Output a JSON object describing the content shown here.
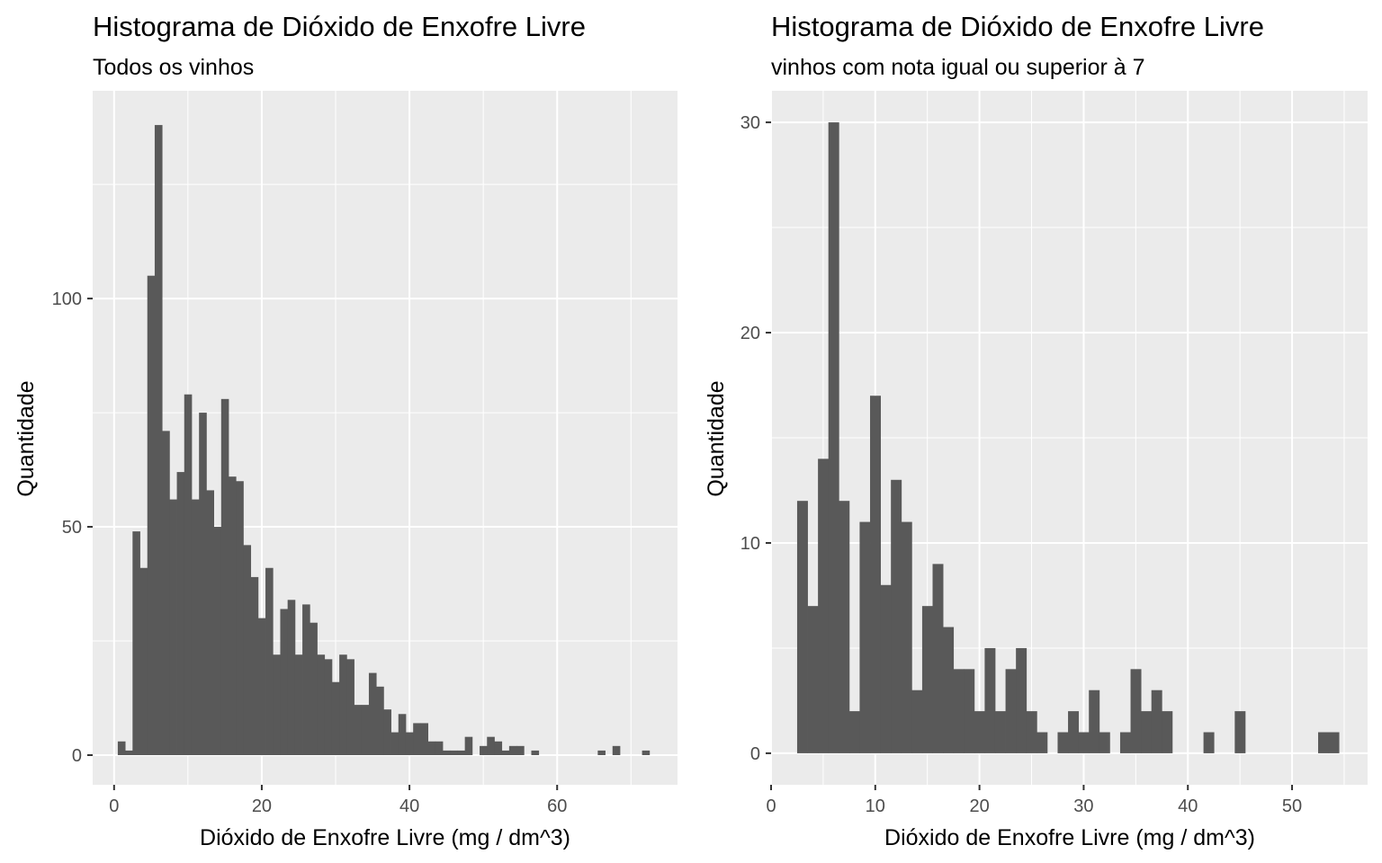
{
  "chart_data": [
    {
      "type": "histogram",
      "title": "Histograma de Dióxido de Enxofre Livre",
      "subtitle": "Todos os vinhos",
      "xlabel": "Dióxido de Enxofre Livre (mg / dm^3)",
      "ylabel": "Quantidade",
      "xlim": [
        -2.9,
        76.3
      ],
      "ylim": [
        -6.5,
        145.5
      ],
      "x_ticks": [
        0,
        20,
        40,
        60
      ],
      "y_ticks": [
        0,
        50,
        100
      ],
      "grid": true,
      "bar_color": "#595959",
      "panel_color": "#ebebeb",
      "bin_width": 1,
      "bins": [
        {
          "x": 1,
          "count": 3
        },
        {
          "x": 2,
          "count": 1
        },
        {
          "x": 3,
          "count": 49
        },
        {
          "x": 4,
          "count": 41
        },
        {
          "x": 5,
          "count": 105
        },
        {
          "x": 6,
          "count": 138
        },
        {
          "x": 7,
          "count": 71
        },
        {
          "x": 8,
          "count": 56
        },
        {
          "x": 9,
          "count": 62
        },
        {
          "x": 10,
          "count": 79
        },
        {
          "x": 11,
          "count": 56
        },
        {
          "x": 12,
          "count": 75
        },
        {
          "x": 13,
          "count": 58
        },
        {
          "x": 14,
          "count": 50
        },
        {
          "x": 15,
          "count": 78
        },
        {
          "x": 16,
          "count": 61
        },
        {
          "x": 17,
          "count": 60
        },
        {
          "x": 18,
          "count": 46
        },
        {
          "x": 19,
          "count": 39
        },
        {
          "x": 20,
          "count": 30
        },
        {
          "x": 21,
          "count": 41
        },
        {
          "x": 22,
          "count": 22
        },
        {
          "x": 23,
          "count": 32
        },
        {
          "x": 24,
          "count": 34
        },
        {
          "x": 25,
          "count": 22
        },
        {
          "x": 26,
          "count": 33
        },
        {
          "x": 27,
          "count": 29
        },
        {
          "x": 28,
          "count": 22
        },
        {
          "x": 29,
          "count": 21
        },
        {
          "x": 30,
          "count": 16
        },
        {
          "x": 31,
          "count": 22
        },
        {
          "x": 32,
          "count": 21
        },
        {
          "x": 33,
          "count": 11
        },
        {
          "x": 34,
          "count": 11
        },
        {
          "x": 35,
          "count": 18
        },
        {
          "x": 36,
          "count": 15
        },
        {
          "x": 37,
          "count": 10
        },
        {
          "x": 38,
          "count": 5
        },
        {
          "x": 39,
          "count": 9
        },
        {
          "x": 40,
          "count": 5
        },
        {
          "x": 41,
          "count": 7
        },
        {
          "x": 42,
          "count": 7
        },
        {
          "x": 43,
          "count": 3
        },
        {
          "x": 44,
          "count": 3
        },
        {
          "x": 45,
          "count": 1
        },
        {
          "x": 46,
          "count": 1
        },
        {
          "x": 47,
          "count": 1
        },
        {
          "x": 48,
          "count": 4
        },
        {
          "x": 49,
          "count": 0
        },
        {
          "x": 50,
          "count": 2
        },
        {
          "x": 51,
          "count": 4
        },
        {
          "x": 52,
          "count": 3
        },
        {
          "x": 53,
          "count": 1
        },
        {
          "x": 54,
          "count": 2
        },
        {
          "x": 55,
          "count": 2
        },
        {
          "x": 56,
          "count": 0
        },
        {
          "x": 57,
          "count": 1
        },
        {
          "x": 58,
          "count": 0
        },
        {
          "x": 59,
          "count": 0
        },
        {
          "x": 60,
          "count": 0
        },
        {
          "x": 61,
          "count": 0
        },
        {
          "x": 62,
          "count": 0
        },
        {
          "x": 63,
          "count": 0
        },
        {
          "x": 64,
          "count": 0
        },
        {
          "x": 65,
          "count": 0
        },
        {
          "x": 66,
          "count": 1
        },
        {
          "x": 67,
          "count": 0
        },
        {
          "x": 68,
          "count": 2
        },
        {
          "x": 69,
          "count": 0
        },
        {
          "x": 70,
          "count": 0
        },
        {
          "x": 71,
          "count": 0
        },
        {
          "x": 72,
          "count": 1
        }
      ]
    },
    {
      "type": "histogram",
      "title": "Histograma de Dióxido de Enxofre Livre",
      "subtitle": "vinhos com nota igual ou superior à 7",
      "xlabel": "Dióxido de Enxofre Livre (mg / dm^3)",
      "ylabel": "Quantidade",
      "xlim": [
        0,
        57.25
      ],
      "ylim": [
        -1.5,
        31.5
      ],
      "x_ticks": [
        0,
        10,
        20,
        30,
        40,
        50
      ],
      "y_ticks": [
        0,
        10,
        20,
        30
      ],
      "grid": true,
      "bar_color": "#595959",
      "panel_color": "#ebebeb",
      "bin_width": 1,
      "bins": [
        {
          "x": 3,
          "count": 12
        },
        {
          "x": 4,
          "count": 7
        },
        {
          "x": 5,
          "count": 14
        },
        {
          "x": 6,
          "count": 30
        },
        {
          "x": 7,
          "count": 12
        },
        {
          "x": 8,
          "count": 2
        },
        {
          "x": 9,
          "count": 11
        },
        {
          "x": 10,
          "count": 17
        },
        {
          "x": 11,
          "count": 8
        },
        {
          "x": 12,
          "count": 13
        },
        {
          "x": 13,
          "count": 11
        },
        {
          "x": 14,
          "count": 3
        },
        {
          "x": 15,
          "count": 7
        },
        {
          "x": 16,
          "count": 9
        },
        {
          "x": 17,
          "count": 6
        },
        {
          "x": 18,
          "count": 4
        },
        {
          "x": 19,
          "count": 4
        },
        {
          "x": 20,
          "count": 2
        },
        {
          "x": 21,
          "count": 5
        },
        {
          "x": 22,
          "count": 2
        },
        {
          "x": 23,
          "count": 4
        },
        {
          "x": 24,
          "count": 5
        },
        {
          "x": 25,
          "count": 2
        },
        {
          "x": 26,
          "count": 1
        },
        {
          "x": 27,
          "count": 0
        },
        {
          "x": 28,
          "count": 1
        },
        {
          "x": 29,
          "count": 2
        },
        {
          "x": 30,
          "count": 1
        },
        {
          "x": 31,
          "count": 3
        },
        {
          "x": 32,
          "count": 1
        },
        {
          "x": 33,
          "count": 0
        },
        {
          "x": 34,
          "count": 1
        },
        {
          "x": 35,
          "count": 4
        },
        {
          "x": 36,
          "count": 2
        },
        {
          "x": 37,
          "count": 3
        },
        {
          "x": 38,
          "count": 2
        },
        {
          "x": 39,
          "count": 0
        },
        {
          "x": 40,
          "count": 0
        },
        {
          "x": 41,
          "count": 0
        },
        {
          "x": 42,
          "count": 1
        },
        {
          "x": 43,
          "count": 0
        },
        {
          "x": 44,
          "count": 0
        },
        {
          "x": 45,
          "count": 2
        },
        {
          "x": 46,
          "count": 0
        },
        {
          "x": 47,
          "count": 0
        },
        {
          "x": 48,
          "count": 0
        },
        {
          "x": 49,
          "count": 0
        },
        {
          "x": 50,
          "count": 0
        },
        {
          "x": 51,
          "count": 0
        },
        {
          "x": 52,
          "count": 0
        },
        {
          "x": 53,
          "count": 1
        },
        {
          "x": 54,
          "count": 1
        }
      ]
    }
  ]
}
